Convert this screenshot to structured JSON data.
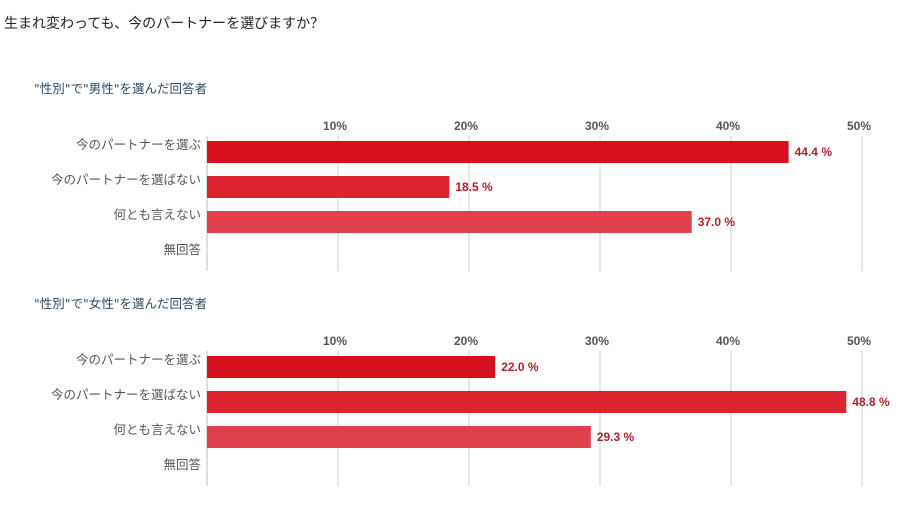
{
  "page": {
    "title": "生まれ変わっても、今のパートナーを選びますか？"
  },
  "chart_data": [
    {
      "type": "bar",
      "orientation": "horizontal",
      "title": "\"性別\"で\"男性\"を選んだ回答者",
      "categories": [
        "今のパートナーを選ぶ",
        "今のパートナーを選ばない",
        "何とも言えない",
        "無回答"
      ],
      "values": [
        44.4,
        18.5,
        37.0,
        null
      ],
      "value_labels": [
        "44.4 %",
        "18.5 %",
        "37.0 %",
        ""
      ],
      "xlim": [
        0,
        50
      ],
      "ticks": [
        10,
        20,
        30,
        40,
        50
      ],
      "tick_labels": [
        "10%",
        "20%",
        "30%",
        "40%",
        "50%"
      ],
      "grid": true,
      "colors": [
        "#d6101e",
        "#dc2330",
        "#e0404c",
        "#e0404c"
      ]
    },
    {
      "type": "bar",
      "orientation": "horizontal",
      "title": "\"性別\"で\"女性\"を選んだ回答者",
      "categories": [
        "今のパートナーを選ぶ",
        "今のパートナーを選ばない",
        "何とも言えない",
        "無回答"
      ],
      "values": [
        22.0,
        48.8,
        29.3,
        null
      ],
      "value_labels": [
        "22.0 %",
        "48.8 %",
        "29.3 %",
        ""
      ],
      "xlim": [
        0,
        50
      ],
      "ticks": [
        10,
        20,
        30,
        40,
        50
      ],
      "tick_labels": [
        "10%",
        "20%",
        "30%",
        "40%",
        "50%"
      ],
      "grid": true,
      "colors": [
        "#d6101e",
        "#dc2330",
        "#e0404c",
        "#e0404c"
      ]
    }
  ]
}
